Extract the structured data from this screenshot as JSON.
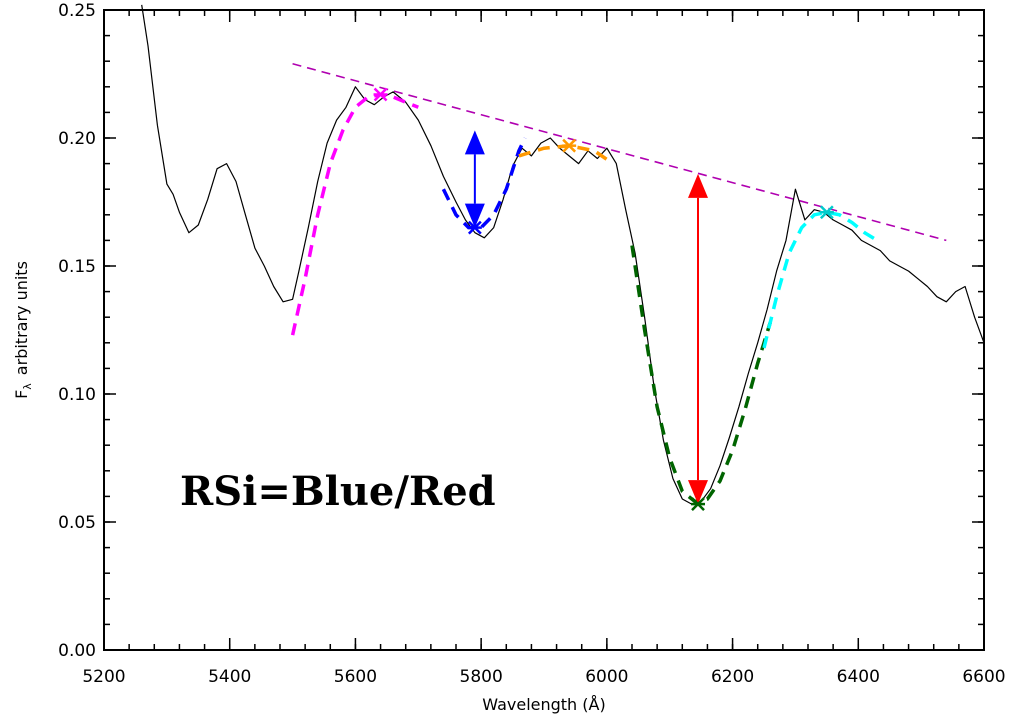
{
  "chart_data": {
    "type": "line",
    "title": "",
    "xlabel": "Wavelength (Å)",
    "ylabel": "F",
    "ylabel_subscript": "λ",
    "ylabel_suffix": "arbitrary units",
    "xlim": [
      5200,
      6600
    ],
    "ylim": [
      0.0,
      0.25
    ],
    "xticks": [
      5200,
      5400,
      5600,
      5800,
      6000,
      6200,
      6400,
      6600
    ],
    "yticks": [
      0.0,
      0.05,
      0.1,
      0.15,
      0.2,
      0.25
    ],
    "xtick_labels": [
      "5200",
      "5400",
      "5600",
      "5800",
      "6000",
      "6200",
      "6400",
      "6600"
    ],
    "ytick_labels": [
      "0.00",
      "0.05",
      "0.10",
      "0.15",
      "0.20",
      "0.25"
    ],
    "grid": false,
    "annotation": "RSi=Blue/Red",
    "spectrum": {
      "color": "#000000",
      "x": [
        5260,
        5270,
        5285,
        5300,
        5310,
        5320,
        5335,
        5350,
        5365,
        5380,
        5395,
        5410,
        5425,
        5440,
        5455,
        5470,
        5485,
        5500,
        5510,
        5525,
        5540,
        5555,
        5570,
        5585,
        5600,
        5615,
        5630,
        5645,
        5660,
        5680,
        5700,
        5720,
        5740,
        5760,
        5775,
        5790,
        5805,
        5820,
        5835,
        5850,
        5865,
        5880,
        5895,
        5910,
        5925,
        5940,
        5955,
        5970,
        5985,
        6000,
        6015,
        6030,
        6045,
        6060,
        6075,
        6090,
        6105,
        6120,
        6135,
        6150,
        6165,
        6180,
        6195,
        6210,
        6225,
        6240,
        6255,
        6270,
        6285,
        6300,
        6315,
        6330,
        6345,
        6360,
        6375,
        6390,
        6405,
        6420,
        6435,
        6450,
        6465,
        6480,
        6495,
        6510,
        6525,
        6540,
        6555,
        6570,
        6585,
        6600
      ],
      "y": [
        0.252,
        0.236,
        0.205,
        0.182,
        0.178,
        0.171,
        0.163,
        0.166,
        0.176,
        0.188,
        0.19,
        0.183,
        0.17,
        0.157,
        0.15,
        0.142,
        0.136,
        0.137,
        0.148,
        0.165,
        0.183,
        0.198,
        0.207,
        0.212,
        0.22,
        0.215,
        0.213,
        0.216,
        0.218,
        0.214,
        0.207,
        0.197,
        0.185,
        0.175,
        0.168,
        0.163,
        0.161,
        0.165,
        0.176,
        0.189,
        0.196,
        0.193,
        0.198,
        0.2,
        0.196,
        0.193,
        0.19,
        0.195,
        0.192,
        0.196,
        0.19,
        0.172,
        0.155,
        0.13,
        0.103,
        0.082,
        0.067,
        0.059,
        0.057,
        0.058,
        0.063,
        0.072,
        0.083,
        0.095,
        0.108,
        0.12,
        0.133,
        0.148,
        0.16,
        0.18,
        0.168,
        0.172,
        0.171,
        0.168,
        0.166,
        0.164,
        0.16,
        0.158,
        0.156,
        0.152,
        0.15,
        0.148,
        0.145,
        0.142,
        0.138,
        0.136,
        0.14,
        0.142,
        0.13,
        0.12
      ]
    },
    "continuum_line": {
      "color": "#b000b0",
      "x": [
        5500,
        6540
      ],
      "y": [
        0.229,
        0.16
      ]
    },
    "fits": [
      {
        "color": "#ff00ff",
        "x": [
          5500,
          5520,
          5540,
          5560,
          5580,
          5600,
          5620,
          5640,
          5660,
          5680,
          5700
        ],
        "y": [
          0.123,
          0.145,
          0.17,
          0.19,
          0.203,
          0.212,
          0.216,
          0.217,
          0.216,
          0.214,
          0.212
        ]
      },
      {
        "color": "#0000ff",
        "x": [
          5740,
          5760,
          5780,
          5800,
          5820,
          5840,
          5860,
          5870
        ],
        "y": [
          0.18,
          0.17,
          0.165,
          0.165,
          0.17,
          0.18,
          0.195,
          0.2
        ]
      },
      {
        "color": "#ff9900",
        "x": [
          5860,
          5900,
          5940,
          5980,
          6010
        ],
        "y": [
          0.193,
          0.196,
          0.197,
          0.195,
          0.19
        ]
      },
      {
        "color": "#006400",
        "x": [
          6040,
          6060,
          6080,
          6100,
          6120,
          6140,
          6160,
          6180,
          6200,
          6220,
          6240,
          6260
        ],
        "y": [
          0.158,
          0.125,
          0.095,
          0.075,
          0.062,
          0.058,
          0.059,
          0.066,
          0.078,
          0.094,
          0.112,
          0.128
        ]
      },
      {
        "color": "#00ffff",
        "x": [
          6250,
          6270,
          6290,
          6310,
          6330,
          6350,
          6370,
          6390,
          6410,
          6430
        ],
        "y": [
          0.118,
          0.138,
          0.155,
          0.165,
          0.17,
          0.171,
          0.17,
          0.167,
          0.163,
          0.16
        ]
      }
    ],
    "markers": [
      {
        "color": "#ff00ff",
        "x": 5640,
        "y": 0.217
      },
      {
        "color": "#0000ff",
        "x": 5790,
        "y": 0.165
      },
      {
        "color": "#ff9900",
        "x": 5940,
        "y": 0.197
      },
      {
        "color": "#006400",
        "x": 6145,
        "y": 0.057
      },
      {
        "color": "#00cccc",
        "x": 6350,
        "y": 0.171
      }
    ],
    "arrows": [
      {
        "color": "#0000ff",
        "x": 5790,
        "y1": 0.165,
        "y2": 0.203
      },
      {
        "color": "#ff0000",
        "x": 6145,
        "y1": 0.057,
        "y2": 0.186
      }
    ]
  }
}
